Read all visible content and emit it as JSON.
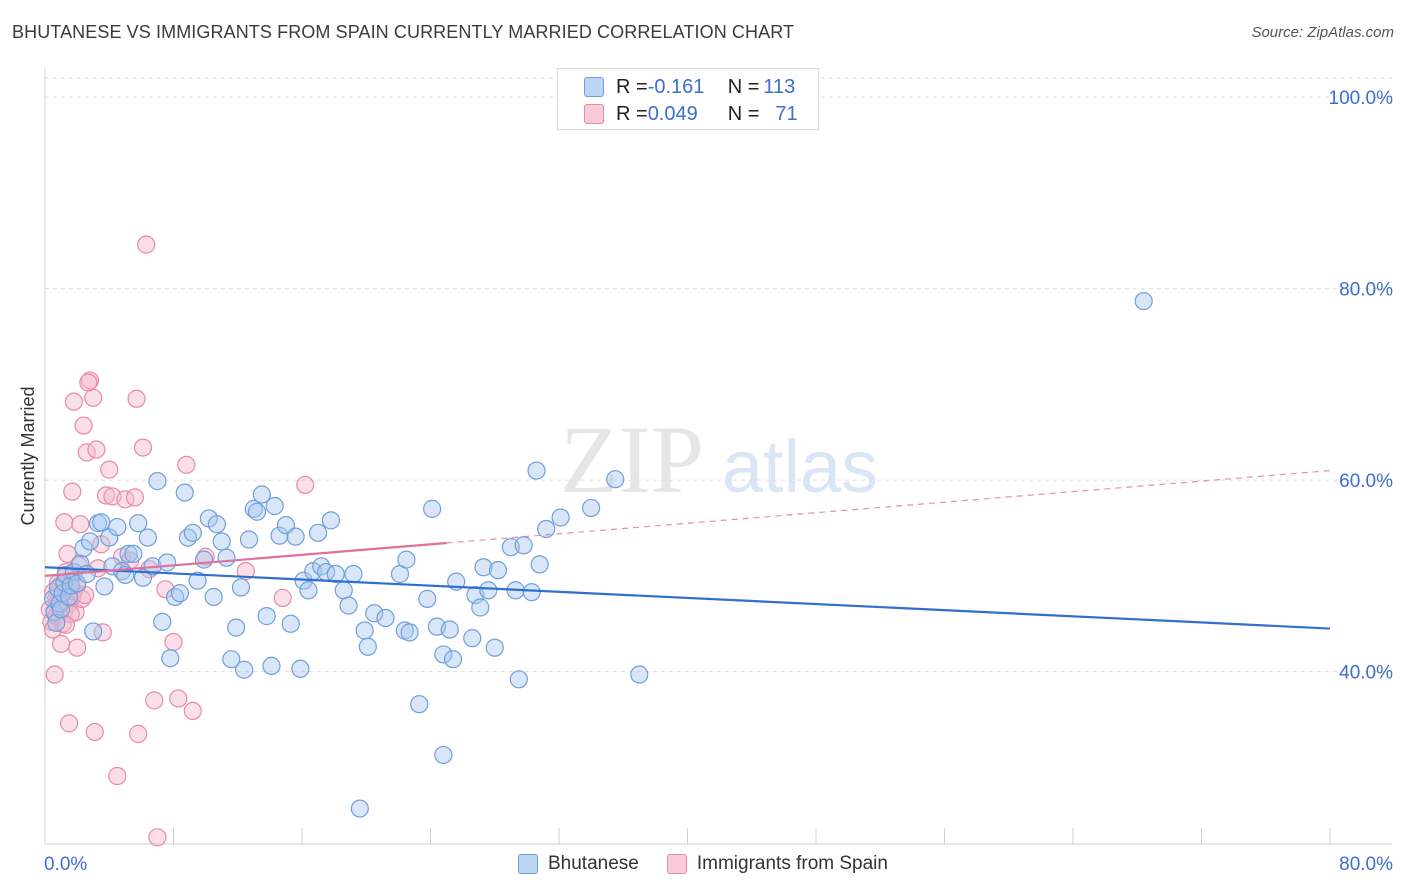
{
  "header": {
    "title": "BHUTANESE VS IMMIGRANTS FROM SPAIN CURRENTLY MARRIED CORRELATION CHART",
    "source": "Source: ZipAtlas.com"
  },
  "watermark": {
    "zip": "ZIP",
    "atlas": "atlas"
  },
  "legend": {
    "rows": [
      {
        "r_label": "R = ",
        "r_value": "-0.161",
        "n_label": "N = ",
        "n_value": "113",
        "color": "#a8c8f0"
      },
      {
        "r_label": "R = ",
        "r_value": "0.049",
        "n_label": "N = ",
        "n_value": "71",
        "color": "#f5b8cc"
      }
    ]
  },
  "bottom_legend": [
    {
      "label": "Bhutanese",
      "color": "#a8c8f0"
    },
    {
      "label": "Immigrants from Spain",
      "color": "#f5b8cc"
    }
  ],
  "colors": {
    "blue_fill": "#a8c8f0",
    "blue_stroke": "#6f9fdc",
    "blue_line": "#2f6fcd",
    "pink_fill": "#f5b8cc",
    "pink_stroke": "#e88aa8",
    "pink_line": "#e0709a",
    "axis_label": "#3b6fd0",
    "grid": "#dcdcdc"
  },
  "chart_data": {
    "type": "scatter",
    "title": "BHUTANESE VS IMMIGRANTS FROM SPAIN CURRENTLY MARRIED CORRELATION CHART",
    "ylabel": "Currently Married",
    "xlabel": "",
    "xlim": [
      0,
      80
    ],
    "ylim": [
      22,
      102
    ],
    "x_tick_labels": [
      {
        "value": 0,
        "label": "0.0%"
      },
      {
        "value": 80,
        "label": "80.0%"
      }
    ],
    "y_tick_labels": [
      {
        "value": 100,
        "label": "100.0%"
      },
      {
        "value": 80,
        "label": "80.0%"
      },
      {
        "value": 60,
        "label": "60.0%"
      },
      {
        "value": 40,
        "label": "40.0%"
      }
    ],
    "grid": true,
    "legend_position": "top-center",
    "series": [
      {
        "name": "Bhutanese",
        "trend": {
          "x0": 0,
          "y0": 50.9,
          "x1": 80,
          "y1": 44.5,
          "dashed_from": null
        },
        "points": [
          [
            0.5,
            47.6
          ],
          [
            0.6,
            46.2
          ],
          [
            0.7,
            45.1
          ],
          [
            0.8,
            48.7
          ],
          [
            0.9,
            47.1
          ],
          [
            1.0,
            46.5
          ],
          [
            1.1,
            48.2
          ],
          [
            1.2,
            49.3
          ],
          [
            1.3,
            50.1
          ],
          [
            1.5,
            47.8
          ],
          [
            1.6,
            49.0
          ],
          [
            1.8,
            50.4
          ],
          [
            2.0,
            49.2
          ],
          [
            2.2,
            51.3
          ],
          [
            2.4,
            52.9
          ],
          [
            2.6,
            50.2
          ],
          [
            2.8,
            53.6
          ],
          [
            3.0,
            44.2
          ],
          [
            3.3,
            55.5
          ],
          [
            3.5,
            55.6
          ],
          [
            3.7,
            48.9
          ],
          [
            4.0,
            54.0
          ],
          [
            4.2,
            51.0
          ],
          [
            4.5,
            55.1
          ],
          [
            4.8,
            50.5
          ],
          [
            5.0,
            50.1
          ],
          [
            5.2,
            52.3
          ],
          [
            5.5,
            52.3
          ],
          [
            5.8,
            55.5
          ],
          [
            6.1,
            49.8
          ],
          [
            6.4,
            54.0
          ],
          [
            6.7,
            51.0
          ],
          [
            7.0,
            59.9
          ],
          [
            7.3,
            45.2
          ],
          [
            7.6,
            51.4
          ],
          [
            7.8,
            41.4
          ],
          [
            8.1,
            47.8
          ],
          [
            8.4,
            48.2
          ],
          [
            8.7,
            58.7
          ],
          [
            8.9,
            54.0
          ],
          [
            9.2,
            54.5
          ],
          [
            9.5,
            49.5
          ],
          [
            9.9,
            51.7
          ],
          [
            10.2,
            56.0
          ],
          [
            10.5,
            47.8
          ],
          [
            10.7,
            55.4
          ],
          [
            11.0,
            53.6
          ],
          [
            11.3,
            51.9
          ],
          [
            11.6,
            41.3
          ],
          [
            11.9,
            44.6
          ],
          [
            12.2,
            48.8
          ],
          [
            12.4,
            40.2
          ],
          [
            12.7,
            53.8
          ],
          [
            13.0,
            57.0
          ],
          [
            13.2,
            56.7
          ],
          [
            13.5,
            58.5
          ],
          [
            13.8,
            45.8
          ],
          [
            14.1,
            40.6
          ],
          [
            14.3,
            57.3
          ],
          [
            14.6,
            54.2
          ],
          [
            15.0,
            55.3
          ],
          [
            15.3,
            45.0
          ],
          [
            15.6,
            54.1
          ],
          [
            15.9,
            40.3
          ],
          [
            16.1,
            49.5
          ],
          [
            16.4,
            48.5
          ],
          [
            16.7,
            50.5
          ],
          [
            17.0,
            54.5
          ],
          [
            17.2,
            51.0
          ],
          [
            17.5,
            50.4
          ],
          [
            17.8,
            55.8
          ],
          [
            18.1,
            50.2
          ],
          [
            18.6,
            48.5
          ],
          [
            18.9,
            46.9
          ],
          [
            19.2,
            50.2
          ],
          [
            19.6,
            25.7
          ],
          [
            19.9,
            44.3
          ],
          [
            20.1,
            42.6
          ],
          [
            20.5,
            46.1
          ],
          [
            21.2,
            45.6
          ],
          [
            22.1,
            50.2
          ],
          [
            22.4,
            44.3
          ],
          [
            22.5,
            51.7
          ],
          [
            22.7,
            44.1
          ],
          [
            23.3,
            36.6
          ],
          [
            23.8,
            47.6
          ],
          [
            24.1,
            57.0
          ],
          [
            24.4,
            44.7
          ],
          [
            24.8,
            41.8
          ],
          [
            24.8,
            31.3
          ],
          [
            25.2,
            44.4
          ],
          [
            25.4,
            41.3
          ],
          [
            25.6,
            49.4
          ],
          [
            26.6,
            43.5
          ],
          [
            26.8,
            48.0
          ],
          [
            27.1,
            46.7
          ],
          [
            27.3,
            50.9
          ],
          [
            27.6,
            48.5
          ],
          [
            28.0,
            42.5
          ],
          [
            28.2,
            50.6
          ],
          [
            29.0,
            53.0
          ],
          [
            29.3,
            48.5
          ],
          [
            29.5,
            39.2
          ],
          [
            29.8,
            53.2
          ],
          [
            30.3,
            48.3
          ],
          [
            30.6,
            61.0
          ],
          [
            30.8,
            51.2
          ],
          [
            31.2,
            54.9
          ],
          [
            32.1,
            56.1
          ],
          [
            34.0,
            57.1
          ],
          [
            35.5,
            60.1
          ],
          [
            37.0,
            39.7
          ],
          [
            68.4,
            78.7
          ]
        ]
      },
      {
        "name": "Immigrants from Spain",
        "trend": {
          "x0": 0,
          "y0": 50.0,
          "x1": 80,
          "y1": 61.0,
          "dashed_from": 25
        },
        "points": [
          [
            0.3,
            46.5
          ],
          [
            0.4,
            45.2
          ],
          [
            0.5,
            44.4
          ],
          [
            0.6,
            46.3
          ],
          [
            0.7,
            47.6
          ],
          [
            0.8,
            48.2
          ],
          [
            0.9,
            46.0
          ],
          [
            1.0,
            49.1
          ],
          [
            1.1,
            47.3
          ],
          [
            1.2,
            46.4
          ],
          [
            1.3,
            50.4
          ],
          [
            1.4,
            48.6
          ],
          [
            1.5,
            47.1
          ],
          [
            1.6,
            49.5
          ],
          [
            1.7,
            47.8
          ],
          [
            1.8,
            48.4
          ],
          [
            1.9,
            46.2
          ],
          [
            2.0,
            49.0
          ],
          [
            2.1,
            51.1
          ],
          [
            0.6,
            39.7
          ],
          [
            0.7,
            45.8
          ],
          [
            0.9,
            47.3
          ],
          [
            1.0,
            42.9
          ],
          [
            1.2,
            55.6
          ],
          [
            1.4,
            52.3
          ],
          [
            1.5,
            34.6
          ],
          [
            1.7,
            58.8
          ],
          [
            1.8,
            68.2
          ],
          [
            2.0,
            42.5
          ],
          [
            2.2,
            55.4
          ],
          [
            2.4,
            65.7
          ],
          [
            2.6,
            62.9
          ],
          [
            2.8,
            70.4
          ],
          [
            3.0,
            68.6
          ],
          [
            3.1,
            33.7
          ],
          [
            3.2,
            63.2
          ],
          [
            3.5,
            53.3
          ],
          [
            3.6,
            44.1
          ],
          [
            3.8,
            58.4
          ],
          [
            4.0,
            61.1
          ],
          [
            4.2,
            58.3
          ],
          [
            4.5,
            29.1
          ],
          [
            4.8,
            52.0
          ],
          [
            5.0,
            58.0
          ],
          [
            5.3,
            51.6
          ],
          [
            5.6,
            58.2
          ],
          [
            5.7,
            68.5
          ],
          [
            5.8,
            33.5
          ],
          [
            6.1,
            63.4
          ],
          [
            6.3,
            84.6
          ],
          [
            6.5,
            50.7
          ],
          [
            6.8,
            37.0
          ],
          [
            7.0,
            22.7
          ],
          [
            7.5,
            48.6
          ],
          [
            8.0,
            43.1
          ],
          [
            8.3,
            37.2
          ],
          [
            8.8,
            61.6
          ],
          [
            9.2,
            35.9
          ],
          [
            10.0,
            52.0
          ],
          [
            12.5,
            50.5
          ],
          [
            14.8,
            47.7
          ],
          [
            16.2,
            59.5
          ],
          [
            2.3,
            47.6
          ],
          [
            1.1,
            45.0
          ],
          [
            0.8,
            49.2
          ],
          [
            1.6,
            46.0
          ],
          [
            2.5,
            48.0
          ],
          [
            3.3,
            50.8
          ],
          [
            0.5,
            48.3
          ],
          [
            1.3,
            44.9
          ],
          [
            2.7,
            70.2
          ]
        ]
      }
    ]
  }
}
